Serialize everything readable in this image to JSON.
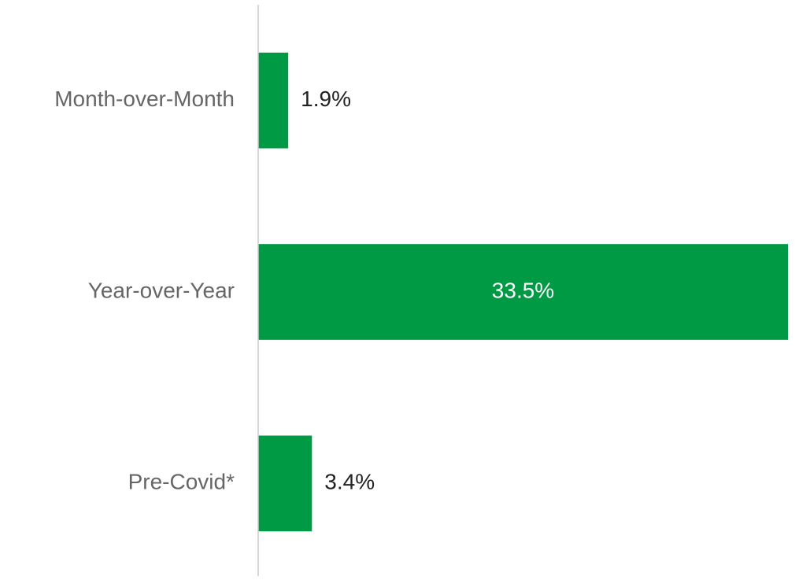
{
  "chart_data": {
    "type": "barh",
    "categories": [
      "Month-over-Month",
      "Year-over-Year",
      "Pre-Covid*"
    ],
    "values": [
      1.9,
      33.5,
      3.4
    ],
    "value_labels": [
      "1.9%",
      "33.5%",
      "3.4%"
    ],
    "color": "#009a44"
  }
}
